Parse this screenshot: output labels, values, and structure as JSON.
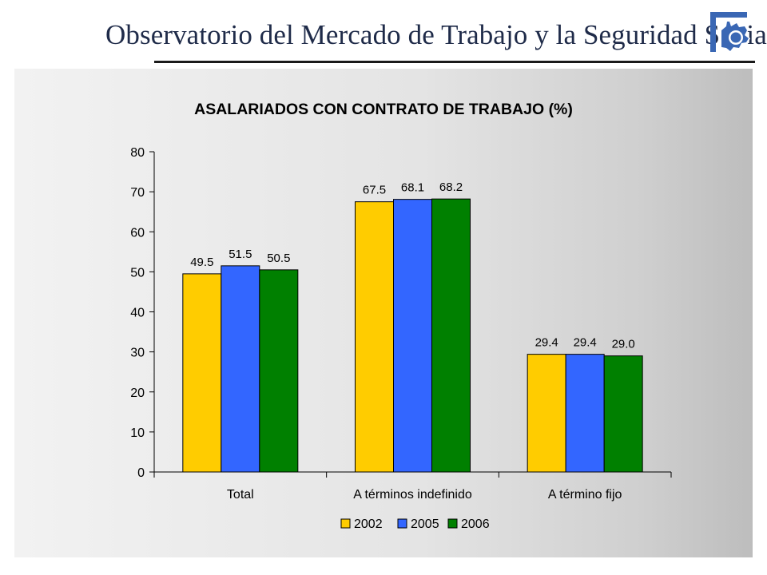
{
  "header": {
    "title": "Observatorio del Mercado de Trabajo y la Seguridad Social",
    "logo_icon": "gear-icon"
  },
  "colors": {
    "2002": "#ffcc00",
    "2005": "#3366ff",
    "2006": "#008000"
  },
  "chart_data": {
    "type": "bar",
    "title": "ASALARIADOS CON CONTRATO DE TRABAJO (%)",
    "categories": [
      "Total",
      "A términos indefinido",
      "A término fijo"
    ],
    "series": [
      {
        "name": "2002",
        "values": [
          49.5,
          67.5,
          29.4
        ],
        "labels": [
          "49.5",
          "67.5",
          "29.4"
        ],
        "color": "#ffcc00"
      },
      {
        "name": "2005",
        "values": [
          51.5,
          68.1,
          29.4
        ],
        "labels": [
          "51.5",
          "68.1",
          "29.4"
        ],
        "color": "#3366ff"
      },
      {
        "name": "2006",
        "values": [
          50.5,
          68.2,
          29.0
        ],
        "labels": [
          "50.5",
          "68.2",
          "29.0"
        ],
        "color": "#008000"
      }
    ],
    "ylim": [
      0,
      80
    ],
    "yticks": [
      0,
      10,
      20,
      30,
      40,
      50,
      60,
      70,
      80
    ],
    "xlabel": "",
    "ylabel": "",
    "grid": false,
    "legend": "bottom"
  }
}
